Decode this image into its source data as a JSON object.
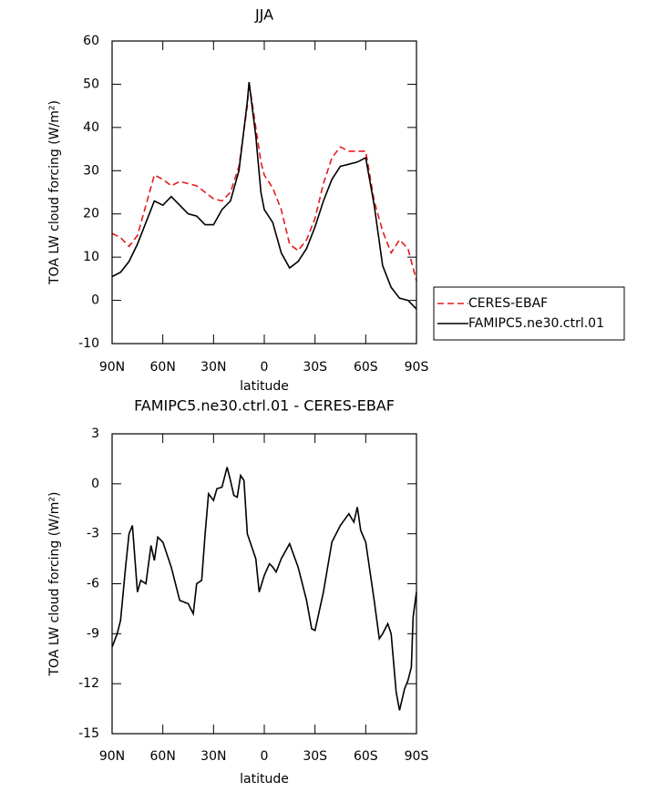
{
  "chart_data": [
    {
      "type": "line",
      "title": "JJA",
      "x_label": "latitude",
      "y_label": "TOA LW cloud forcing (W/m²)",
      "x": [
        90,
        85,
        80,
        75,
        70,
        65,
        60,
        55,
        50,
        45,
        40,
        35,
        30,
        25,
        20,
        15,
        10,
        9,
        5,
        2,
        0,
        -5,
        -10,
        -15,
        -20,
        -25,
        -30,
        -35,
        -40,
        -45,
        -50,
        -55,
        -60,
        -65,
        -70,
        -75,
        -80,
        -85,
        -90
      ],
      "xlim": [
        90,
        -90
      ],
      "xticks": [
        {
          "value": 90,
          "label": "90N"
        },
        {
          "value": 60,
          "label": "60N"
        },
        {
          "value": 30,
          "label": "30N"
        },
        0,
        {
          "value": -30,
          "label": "30S"
        },
        {
          "value": -60,
          "label": "60S"
        },
        {
          "value": -90,
          "label": "90S"
        }
      ],
      "ylim": [
        -10,
        60
      ],
      "yticks": [
        -10,
        0,
        10,
        20,
        30,
        40,
        50,
        60
      ],
      "legend": "right",
      "series": [
        {
          "name": "CERES-EBAF",
          "color": "#e41a1c",
          "line_style": "dashed",
          "values": [
            15.5,
            14.5,
            12.5,
            15,
            22,
            29,
            28,
            26.5,
            27.5,
            27,
            26.5,
            25,
            23.5,
            23,
            25,
            31,
            45,
            50.5,
            40,
            32,
            29,
            26,
            21,
            13,
            11.5,
            14,
            19,
            27,
            33,
            35.5,
            34.5,
            34.5,
            34.5,
            23,
            16,
            11,
            14,
            12,
            4.5
          ]
        },
        {
          "name": "FAMIPC5.ne30.ctrl.01",
          "color": "#000000",
          "line_style": "solid",
          "values": [
            5.5,
            6.5,
            9,
            13,
            18,
            23,
            22,
            24,
            22,
            20,
            19.5,
            17.5,
            17.5,
            21,
            23,
            30,
            46,
            50.5,
            38,
            25,
            21,
            18,
            11,
            7.5,
            9,
            12,
            17,
            23,
            28,
            31,
            31.5,
            32,
            33,
            22,
            8,
            3,
            0.5,
            0,
            -2
          ]
        }
      ]
    },
    {
      "type": "line",
      "title": "FAMIPC5.ne30.ctrl.01 - CERES-EBAF",
      "x_label": "latitude",
      "y_label": "TOA LW cloud forcing (W/m²)",
      "x": [
        90,
        87,
        85,
        82,
        80,
        78,
        75,
        73,
        70,
        67,
        65,
        63,
        60,
        55,
        50,
        45,
        42,
        40,
        37,
        35,
        33,
        30,
        28,
        25,
        22,
        20,
        18,
        16,
        14,
        12,
        10,
        5,
        3,
        0,
        -3,
        -5,
        -7,
        -10,
        -15,
        -20,
        -25,
        -28,
        -30,
        -35,
        -40,
        -45,
        -50,
        -53,
        -55,
        -57,
        -60,
        -65,
        -68,
        -70,
        -73,
        -75,
        -78,
        -80,
        -83,
        -85,
        -87,
        -88,
        -90
      ],
      "xlim": [
        90,
        -90
      ],
      "xticks": [
        {
          "value": 90,
          "label": "90N"
        },
        {
          "value": 60,
          "label": "60N"
        },
        {
          "value": 30,
          "label": "30N"
        },
        0,
        {
          "value": -30,
          "label": "30S"
        },
        {
          "value": -60,
          "label": "60S"
        },
        {
          "value": -90,
          "label": "90S"
        }
      ],
      "ylim": [
        -15,
        3
      ],
      "yticks": [
        -15,
        -12,
        -9,
        -6,
        -3,
        0,
        3
      ],
      "series": [
        {
          "color": "#000000",
          "line_style": "solid",
          "values": [
            -9.8,
            -9,
            -8.2,
            -5,
            -3,
            -2.5,
            -6.5,
            -5.8,
            -6,
            -3.7,
            -4.6,
            -3.2,
            -3.5,
            -5,
            -7,
            -7.2,
            -7.8,
            -6,
            -5.8,
            -3,
            -0.6,
            -1,
            -0.3,
            -0.2,
            1,
            0.2,
            -0.7,
            -0.8,
            0.5,
            0.2,
            -3,
            -4.5,
            -6.5,
            -5.5,
            -4.8,
            -5,
            -5.3,
            -4.5,
            -3.6,
            -5,
            -7,
            -8.7,
            -8.8,
            -6.5,
            -3.5,
            -2.5,
            -1.8,
            -2.3,
            -1.4,
            -2.8,
            -3.5,
            -7,
            -9.3,
            -9,
            -8.4,
            -9,
            -12.5,
            -13.6,
            -12.3,
            -11.8,
            -11,
            -8,
            -6.5
          ]
        }
      ]
    }
  ]
}
